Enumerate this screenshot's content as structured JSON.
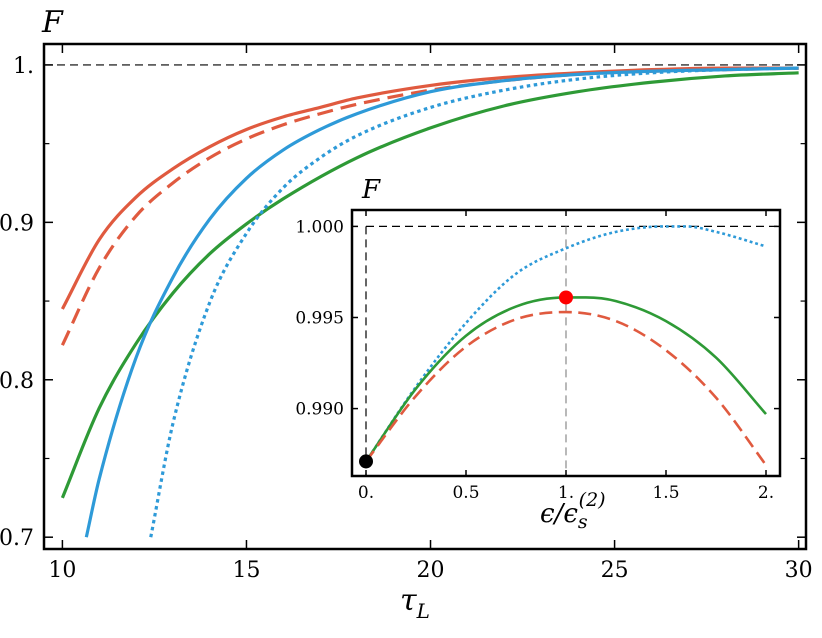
{
  "chart_data": [
    {
      "type": "line",
      "ylabel": "F",
      "xlabel": "τ_L",
      "xlim": [
        9.5,
        30.2
      ],
      "ylim": [
        0.6925,
        1.0133
      ],
      "xticks": [
        10,
        15,
        20,
        25,
        30
      ],
      "xtick_labels": [
        "10",
        "15",
        "20",
        "25",
        "30"
      ],
      "yticks": [
        0.7,
        0.8,
        0.9,
        1.0
      ],
      "ytick_labels": [
        "0.7",
        "0.8",
        "0.9",
        "1."
      ],
      "reference_line": {
        "y": 1.0,
        "style": "dashed",
        "color": "#000000"
      },
      "grid": false,
      "series": [
        {
          "color": "#e05a3f",
          "style": "solid",
          "x": [
            10,
            11,
            12,
            13,
            14,
            15,
            16,
            17,
            18,
            20,
            22,
            24,
            26,
            28,
            30
          ],
          "y": [
            0.845,
            0.889,
            0.916,
            0.934,
            0.948,
            0.959,
            0.967,
            0.973,
            0.979,
            0.987,
            0.992,
            0.995,
            0.997,
            0.998,
            0.998
          ]
        },
        {
          "color": "#e05a3f",
          "style": "dashed",
          "x": [
            10,
            11,
            12,
            13,
            14,
            15,
            16,
            17,
            18,
            20,
            22,
            24,
            26,
            28,
            30
          ],
          "y": [
            0.822,
            0.871,
            0.904,
            0.925,
            0.941,
            0.953,
            0.962,
            0.969,
            0.975,
            0.984,
            0.99,
            0.994,
            0.996,
            0.997,
            0.998
          ]
        },
        {
          "color": "#2e9a36",
          "style": "solid",
          "x": [
            10,
            11,
            12,
            13,
            14,
            15,
            16,
            18,
            20,
            22,
            24,
            26,
            28,
            30
          ],
          "y": [
            0.725,
            0.782,
            0.823,
            0.855,
            0.88,
            0.899,
            0.915,
            0.941,
            0.96,
            0.974,
            0.983,
            0.989,
            0.993,
            0.995
          ]
        },
        {
          "color": "#2e9ad8",
          "style": "solid",
          "x": [
            10.65,
            11,
            12,
            13,
            14,
            15,
            16,
            17,
            18,
            20,
            22,
            24,
            26,
            28,
            30
          ],
          "y": [
            0.7,
            0.737,
            0.814,
            0.865,
            0.902,
            0.928,
            0.946,
            0.959,
            0.969,
            0.983,
            0.99,
            0.994,
            0.996,
            0.997,
            0.998
          ]
        },
        {
          "color": "#2e9ad8",
          "style": "dotted",
          "x": [
            12.4,
            13,
            14,
            15,
            16,
            17,
            18,
            20,
            22,
            24,
            26,
            28,
            30
          ],
          "y": [
            0.7,
            0.772,
            0.849,
            0.893,
            0.922,
            0.941,
            0.955,
            0.973,
            0.984,
            0.991,
            0.995,
            0.997,
            0.998
          ]
        }
      ]
    },
    {
      "type": "line",
      "ylabel": "F",
      "xlabel": "ϵ/ϵ_s^(2)",
      "xlim": [
        -0.07,
        2.07
      ],
      "ylim": [
        0.9863,
        1.0009
      ],
      "xticks": [
        0,
        0.5,
        1,
        1.5,
        2
      ],
      "xtick_labels": [
        "0.",
        "0.5",
        "1.",
        "1.5",
        "2."
      ],
      "yticks": [
        0.99,
        0.995,
        1.0
      ],
      "ytick_labels": [
        "0.990",
        "0.995",
        "1.000"
      ],
      "reference_lines": [
        {
          "y": 1.0,
          "style": "dashed",
          "color": "#000000"
        },
        {
          "x": 0,
          "style": "dashed",
          "color": "#000000"
        },
        {
          "x": 1,
          "style": "dashed",
          "color": "#8a8a8a"
        }
      ],
      "grid": false,
      "series": [
        {
          "color": "#2e9ad8",
          "style": "dotted",
          "x": [
            0,
            0.25,
            0.5,
            0.75,
            1.0,
            1.25,
            1.5,
            1.6,
            1.75,
            2.0
          ],
          "y": [
            0.9871,
            0.9912,
            0.9947,
            0.9974,
            0.9988,
            0.9997,
            1.0,
            1.0,
            0.9997,
            0.9989
          ]
        },
        {
          "color": "#2e9a36",
          "style": "solid",
          "x": [
            0,
            0.25,
            0.5,
            0.75,
            1.0,
            1.1,
            1.25,
            1.5,
            1.75,
            2.0
          ],
          "y": [
            0.9871,
            0.9911,
            0.994,
            0.9956,
            0.9961,
            0.9961,
            0.9959,
            0.9948,
            0.9928,
            0.9897
          ]
        },
        {
          "color": "#e05a3f",
          "style": "dashed",
          "x": [
            0,
            0.25,
            0.5,
            0.75,
            1.0,
            1.25,
            1.5,
            1.75,
            2.0
          ],
          "y": [
            0.9871,
            0.9907,
            0.9934,
            0.9949,
            0.9953,
            0.9948,
            0.9932,
            0.9906,
            0.9869
          ]
        }
      ],
      "markers": [
        {
          "x": 0,
          "y": 0.9871,
          "color": "#000000"
        },
        {
          "x": 1,
          "y": 0.9961,
          "color": "#ff0000"
        }
      ]
    }
  ]
}
